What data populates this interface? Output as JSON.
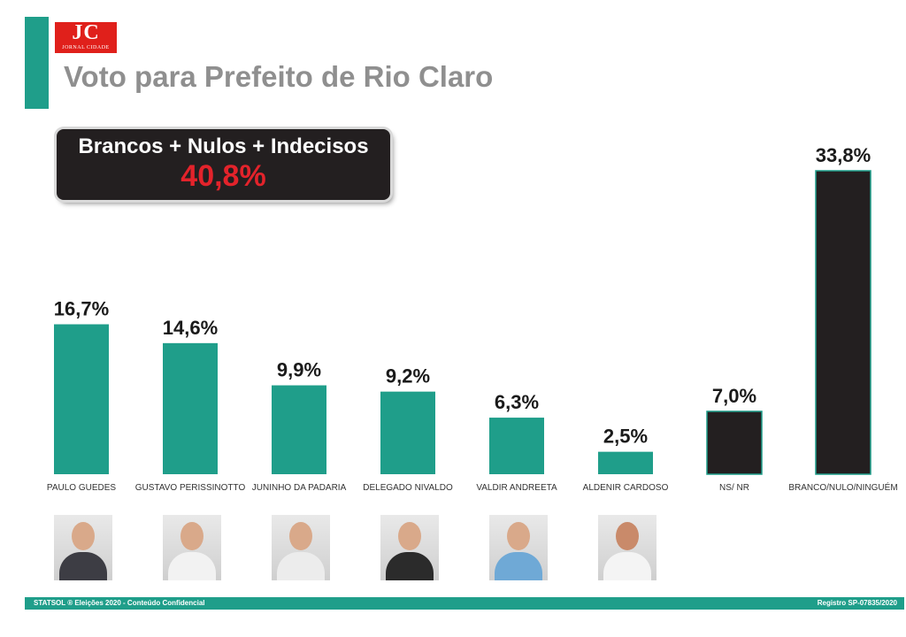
{
  "header": {
    "logo_text": "JC",
    "logo_subtext": "JORNAL CIDADE",
    "title": "Voto para Prefeito de Rio Claro"
  },
  "callout": {
    "label": "Brancos + Nulos + Indecisos",
    "value": "40,8%"
  },
  "chart_data": {
    "type": "bar",
    "title": "Voto para Prefeito de Rio Claro",
    "xlabel": "",
    "ylabel": "",
    "grid": false,
    "categories": [
      "PAULO GUEDES",
      "GUSTAVO PERISSINOTTO",
      "JUNINHO DA PADARIA",
      "DELEGADO NIVALDO",
      "VALDIR ANDREETA",
      "ALDENIR CARDOSO",
      "NS/ NR",
      "BRANCO/NULO/NINGUÉM"
    ],
    "values": [
      16.7,
      14.6,
      9.9,
      9.2,
      6.3,
      2.5,
      7.0,
      33.8
    ],
    "data_labels": [
      "16,7%",
      "14,6%",
      "9,9%",
      "9,2%",
      "6,3%",
      "2,5%",
      "7,0%",
      "33,8%"
    ],
    "bar_colors": [
      "#1f9e8a",
      "#1f9e8a",
      "#1f9e8a",
      "#1f9e8a",
      "#1f9e8a",
      "#1f9e8a",
      "#231f20",
      "#231f20"
    ],
    "ylim": [
      0,
      33.8
    ]
  },
  "photos": [
    "photo-paulo-guedes",
    "photo-gustavo-perissinotto",
    "photo-juninho-da-padaria",
    "photo-delegado-nivaldo",
    "photo-valdir-andreeta",
    "photo-aldenir-cardoso"
  ],
  "footer": {
    "left": "STATSOL ® Eleições 2020 - Conteúdo Confidencial",
    "right": "Registro SP-07835/2020"
  },
  "colors": {
    "accent": "#1f9e8a",
    "dark": "#231f20",
    "highlight_red": "#e3232b",
    "title_gray": "#8f8f8f"
  }
}
